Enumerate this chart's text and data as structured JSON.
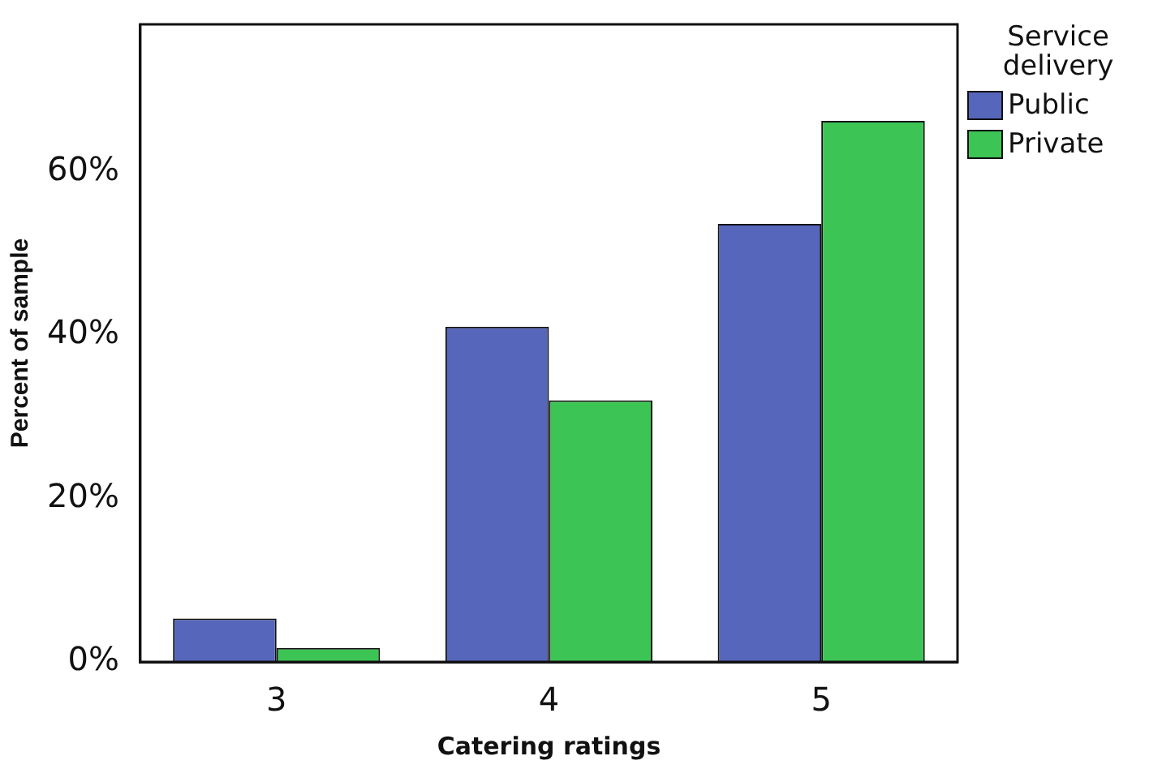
{
  "chart_data": {
    "type": "bar",
    "xlabel": "Catering ratings",
    "ylabel": "Percent of sample",
    "legend_title": "Service delivery",
    "categories": [
      "3",
      "4",
      "5"
    ],
    "series": [
      {
        "name": "Public",
        "color": "#5566bb",
        "values": [
          5.3,
          41,
          53.6
        ]
      },
      {
        "name": "Private",
        "color": "#3cc454",
        "values": [
          1.7,
          32,
          66.2
        ]
      }
    ],
    "ylim": [
      0,
      78
    ],
    "yticks": [
      {
        "value": 0,
        "label": "0%"
      },
      {
        "value": 20,
        "label": "20%"
      },
      {
        "value": 40,
        "label": "40%"
      },
      {
        "value": 60,
        "label": "60%"
      }
    ],
    "grid": false,
    "legend": "right"
  }
}
